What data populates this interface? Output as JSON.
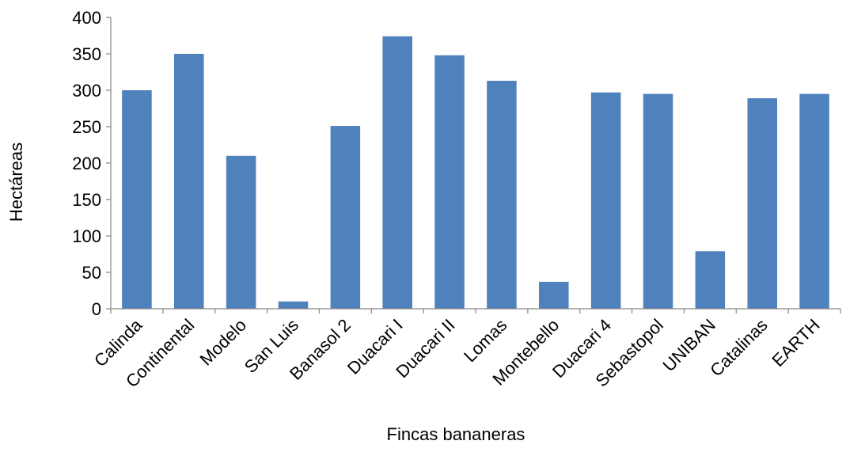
{
  "chart_data": {
    "type": "bar",
    "title": "",
    "xlabel": "Fincas bananeras",
    "ylabel": "Hectáreas",
    "categories": [
      "Calinda",
      "Continental",
      "Modelo",
      "San Luis",
      "Banasol 2",
      "Duacari I",
      "Duacari II",
      "Lomas",
      "Montebello",
      "Duacari 4",
      "Sebastopol",
      "UNIBAN",
      "Catalinas",
      "EARTH"
    ],
    "values": [
      300,
      350,
      210,
      10,
      251,
      374,
      348,
      313,
      37,
      297,
      295,
      79,
      289,
      295
    ],
    "ylim": [
      0,
      400
    ],
    "yticks": [
      "0",
      "50",
      "100",
      "150",
      "200",
      "250",
      "300",
      "350",
      "400"
    ],
    "grid": false,
    "legend": "none",
    "colors": {
      "bar": "#4f81bd",
      "axis": "#868686"
    }
  }
}
